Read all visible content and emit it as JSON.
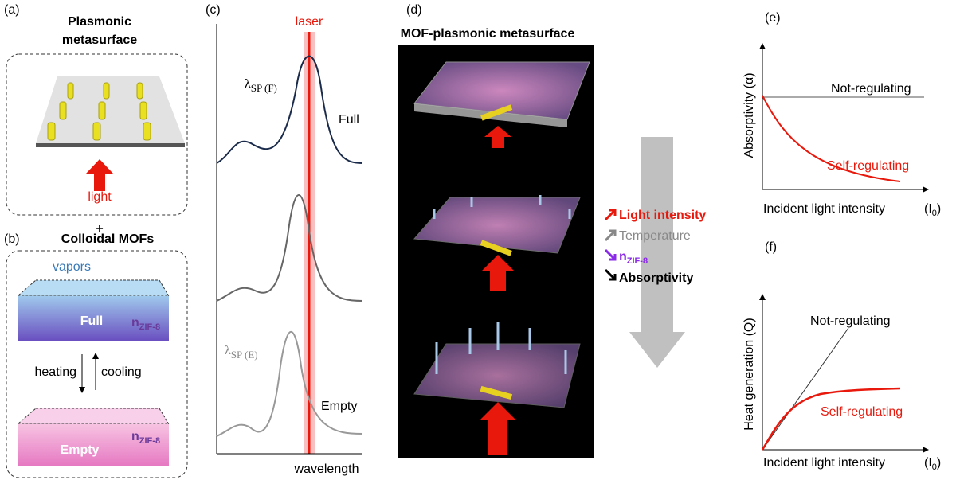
{
  "panel_a": {
    "label": "(a)",
    "title": [
      "Plasmonic",
      "metasurface"
    ],
    "arrow_label": "light"
  },
  "plus": "+",
  "panel_b": {
    "label": "(b)",
    "title": "Colloidal MOFs",
    "vapors": "vapors",
    "full": "Full",
    "empty": "Empty",
    "heating": "heating",
    "cooling": "cooling",
    "n_symbol": "n",
    "n_subscript": "ZIF-8"
  },
  "panel_c": {
    "label": "(c)",
    "laser": "laser",
    "lambda": "λ",
    "sub_full": "SP (F)",
    "sub_empty": "SP (E)",
    "full": "Full",
    "empty": "Empty",
    "x_label": "wavelength"
  },
  "panel_d": {
    "label": "(d)",
    "title": "MOF-plasmonic metasurface",
    "legend": [
      "Light intensity",
      "Temperature",
      "n",
      "Absorptivity"
    ],
    "legend_subscript": "ZIF-8"
  },
  "panel_e": {
    "label": "(e)",
    "y_label": "Absorptivity (α)",
    "not_regulating": "Not-regulating",
    "self_regulating": "Self-regulating",
    "x_label": "Incident light intensity",
    "x_unit": [
      "(I",
      "0",
      ")"
    ]
  },
  "panel_f": {
    "label": "(f)",
    "y_label": "Heat generation (Q)",
    "not_regulating": "Not-regulating",
    "self_regulating": "Self-regulating",
    "x_label": "Incident light intensity",
    "x_unit": [
      "(I",
      "0",
      ")"
    ]
  }
}
